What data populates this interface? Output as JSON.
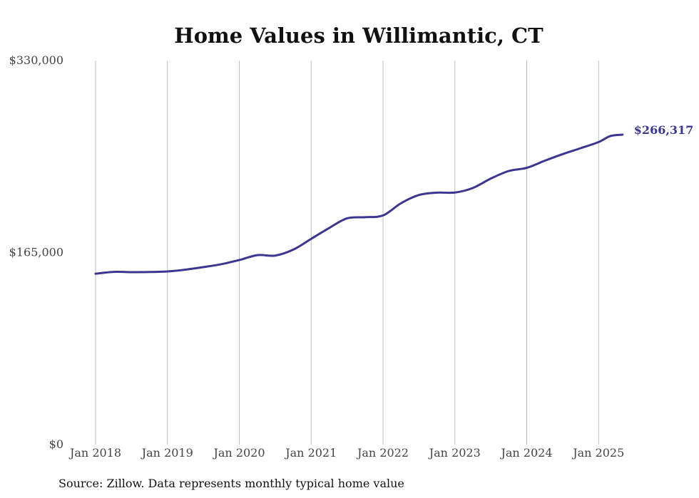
{
  "chart_data": {
    "type": "line",
    "title": "Home Values in Willimantic, CT",
    "xlabel": "",
    "ylabel": "",
    "ylim": [
      0,
      330000
    ],
    "y_ticks": [
      {
        "value": 0,
        "label": "$0"
      },
      {
        "value": 165000,
        "label": "$165,000"
      },
      {
        "value": 330000,
        "label": "$330,000"
      }
    ],
    "x_ticks": [
      {
        "value": 2018.0,
        "label": "Jan 2018"
      },
      {
        "value": 2019.0,
        "label": "Jan 2019"
      },
      {
        "value": 2020.0,
        "label": "Jan 2020"
      },
      {
        "value": 2021.0,
        "label": "Jan 2021"
      },
      {
        "value": 2022.0,
        "label": "Jan 2022"
      },
      {
        "value": 2023.0,
        "label": "Jan 2023"
      },
      {
        "value": 2024.0,
        "label": "Jan 2024"
      },
      {
        "value": 2025.0,
        "label": "Jan 2025"
      }
    ],
    "xlim": [
      2018.0,
      2025.333
    ],
    "grid": "vertical",
    "series": [
      {
        "name": "",
        "color": "#3d3592",
        "points": [
          {
            "x": 2018.0,
            "y": 146800
          },
          {
            "x": 2018.25,
            "y": 148400
          },
          {
            "x": 2018.5,
            "y": 148200
          },
          {
            "x": 2018.75,
            "y": 148300
          },
          {
            "x": 2019.0,
            "y": 148800
          },
          {
            "x": 2019.25,
            "y": 150300
          },
          {
            "x": 2019.5,
            "y": 152500
          },
          {
            "x": 2019.75,
            "y": 155000
          },
          {
            "x": 2020.0,
            "y": 158600
          },
          {
            "x": 2020.25,
            "y": 162800
          },
          {
            "x": 2020.5,
            "y": 162400
          },
          {
            "x": 2020.75,
            "y": 167500
          },
          {
            "x": 2021.0,
            "y": 176800
          },
          {
            "x": 2021.25,
            "y": 186100
          },
          {
            "x": 2021.5,
            "y": 194400
          },
          {
            "x": 2021.75,
            "y": 195400
          },
          {
            "x": 2022.0,
            "y": 196900
          },
          {
            "x": 2022.25,
            "y": 207400
          },
          {
            "x": 2022.5,
            "y": 214500
          },
          {
            "x": 2022.75,
            "y": 216500
          },
          {
            "x": 2023.0,
            "y": 216600
          },
          {
            "x": 2023.25,
            "y": 220500
          },
          {
            "x": 2023.5,
            "y": 228600
          },
          {
            "x": 2023.75,
            "y": 235100
          },
          {
            "x": 2024.0,
            "y": 237800
          },
          {
            "x": 2024.25,
            "y": 243900
          },
          {
            "x": 2024.5,
            "y": 249600
          },
          {
            "x": 2024.75,
            "y": 254700
          },
          {
            "x": 2025.0,
            "y": 260000
          },
          {
            "x": 2025.167,
            "y": 265200
          },
          {
            "x": 2025.333,
            "y": 266317
          }
        ]
      }
    ],
    "end_label": "$266,317"
  },
  "source_note": "Source: Zillow. Data represents monthly typical home value"
}
